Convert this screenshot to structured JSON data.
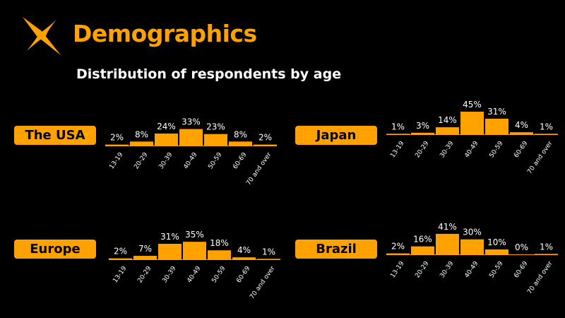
{
  "header": {
    "title": "Demographics",
    "subtitle": "Distribution of respondents by age",
    "logo_icon": "sparkle-star-icon"
  },
  "colors": {
    "accent": "#FFA200",
    "background": "#000000",
    "text": "#FFFFFF",
    "baseline": "#FFA200"
  },
  "chart_data": [
    {
      "type": "bar",
      "region": "The USA",
      "categories": [
        "13-19",
        "20-29",
        "30-39",
        "40-49",
        "50-59",
        "60-69",
        "70 and over"
      ],
      "values": [
        2,
        8,
        24,
        33,
        23,
        8,
        2
      ],
      "value_labels": [
        "2%",
        "8%",
        "24%",
        "33%",
        "23%",
        "8%",
        "2%"
      ],
      "unit": "%",
      "ylim": [
        0,
        45
      ]
    },
    {
      "type": "bar",
      "region": "Japan",
      "categories": [
        "13-19",
        "20-29",
        "30-39",
        "40-49",
        "50-59",
        "60-69",
        "70 and over"
      ],
      "values": [
        1,
        3,
        14,
        45,
        31,
        4,
        1
      ],
      "value_labels": [
        "1%",
        "3%",
        "14%",
        "45%",
        "31%",
        "4%",
        "1%"
      ],
      "unit": "%",
      "ylim": [
        0,
        45
      ]
    },
    {
      "type": "bar",
      "region": "Europe",
      "categories": [
        "13-19",
        "20-29",
        "30-39",
        "40-49",
        "50-59",
        "60-69",
        "70 and over"
      ],
      "values": [
        2,
        7,
        31,
        35,
        18,
        4,
        1
      ],
      "value_labels": [
        "2%",
        "7%",
        "31%",
        "35%",
        "18%",
        "4%",
        "1%"
      ],
      "unit": "%",
      "ylim": [
        0,
        45
      ]
    },
    {
      "type": "bar",
      "region": "Brazil",
      "categories": [
        "13-19",
        "20-29",
        "30-39",
        "40-49",
        "50-59",
        "60-69",
        "70 and over"
      ],
      "values": [
        2,
        16,
        41,
        30,
        10,
        0,
        1
      ],
      "value_labels": [
        "2%",
        "16%",
        "41%",
        "30%",
        "10%",
        "0%",
        "1%"
      ],
      "unit": "%",
      "ylim": [
        0,
        45
      ]
    }
  ]
}
